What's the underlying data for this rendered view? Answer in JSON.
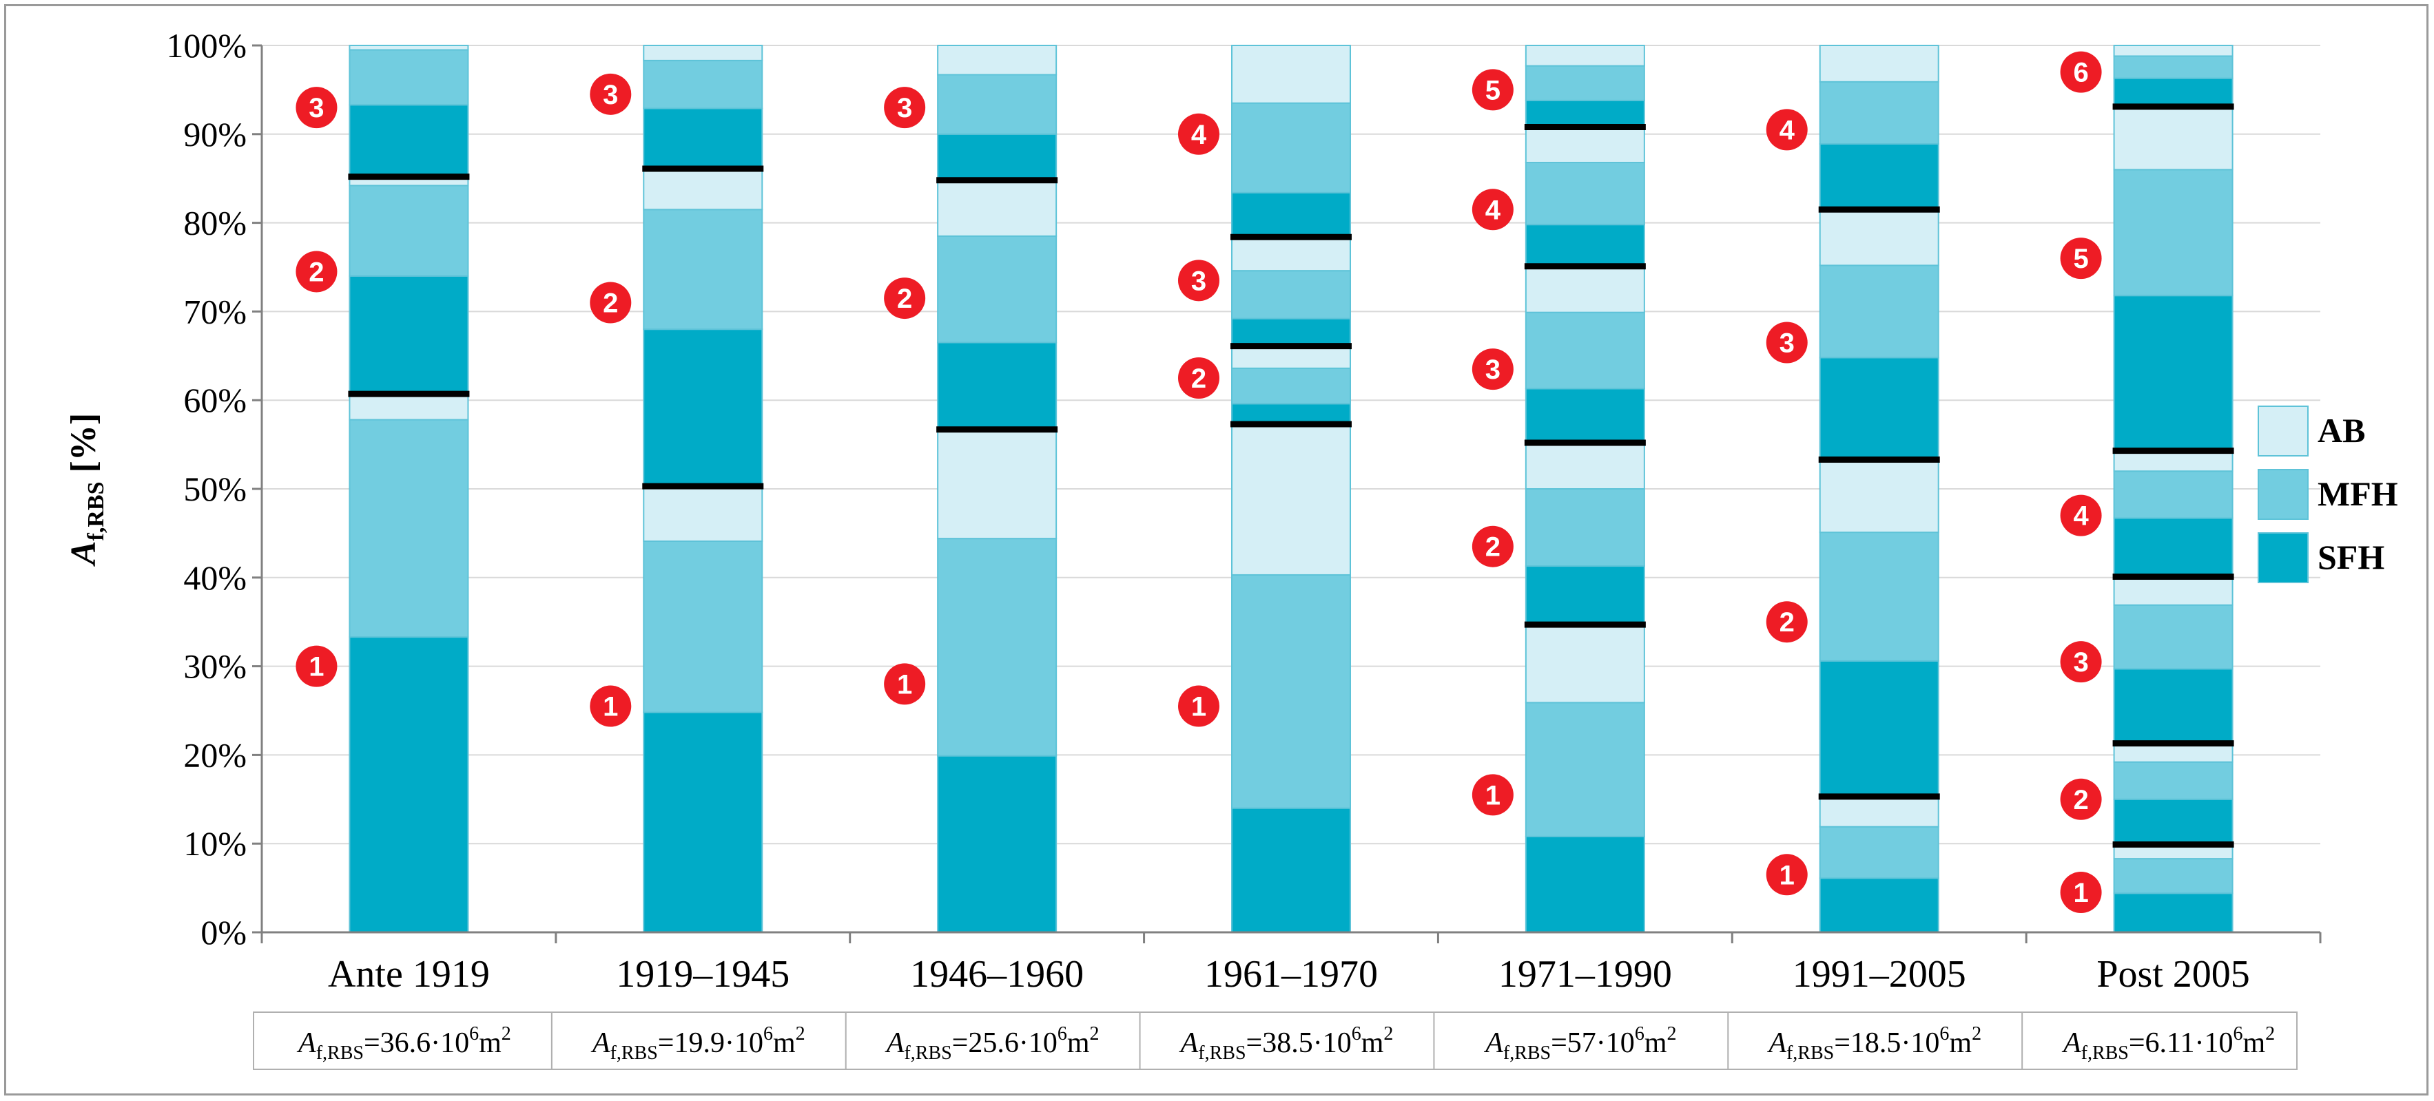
{
  "chart_data": {
    "type": "bar",
    "stacked": true,
    "normalized": true,
    "ylabel_main": "A",
    "ylabel_sub": "f,RBS",
    "ylabel_unit": " [%]",
    "ylim": [
      0,
      100
    ],
    "ytick_labels": [
      "0%",
      "10%",
      "20%",
      "30%",
      "40%",
      "50%",
      "60%",
      "70%",
      "80%",
      "90%",
      "100%"
    ],
    "categories": [
      "Ante 1919",
      "1919–1945",
      "1946–1960",
      "1961–1970",
      "1971–1990",
      "1991–2005",
      "Post 2005"
    ],
    "area_labels": [
      {
        "sym": "A",
        "sub": "f,RBS",
        "value": "=36.6·10",
        "exp": "6",
        "unit": "m",
        "unit_exp": "2"
      },
      {
        "sym": "A",
        "sub": "f,RBS",
        "value": "=19.9·10",
        "exp": "6",
        "unit": "m",
        "unit_exp": "2"
      },
      {
        "sym": "A",
        "sub": "f,RBS",
        "value": "=25.6·10",
        "exp": "6",
        "unit": "m",
        "unit_exp": "2"
      },
      {
        "sym": "A",
        "sub": "f,RBS",
        "value": "=38.5·10",
        "exp": "6",
        "unit": "m",
        "unit_exp": "2"
      },
      {
        "sym": "A",
        "sub": "f,RBS",
        "value": "=57·10",
        "exp": "6",
        "unit": "m",
        "unit_exp": "2"
      },
      {
        "sym": "A",
        "sub": "f,RBS",
        "value": "=18.5·10",
        "exp": "6",
        "unit": "m",
        "unit_exp": "2"
      },
      {
        "sym": "A",
        "sub": "f,RBS",
        "value": "=6.11·10",
        "exp": "6",
        "unit": "m",
        "unit_exp": "2"
      }
    ],
    "legend": {
      "position": "right",
      "items": [
        {
          "name": "AB",
          "color": "#d5eff6"
        },
        {
          "name": "MFH",
          "color": "#72cde0"
        },
        {
          "name": "SFH",
          "color": "#00abc7"
        }
      ]
    },
    "colors": {
      "SFH": "#00abc7",
      "MFH": "#72cde0",
      "AB": "#d5eff6",
      "bar_edge": "#5ec3d8",
      "separator": "#000000",
      "marker": "#ee1c25",
      "grid": "#d9d9d9",
      "axis": "#808080"
    },
    "bars": [
      {
        "category": "Ante 1919",
        "separators": [
          60.7,
          85.2
        ],
        "groups": [
          {
            "label": "1",
            "label_y": 30,
            "segments": [
              {
                "type": "SFH",
                "from": 0,
                "to": 33.3
              },
              {
                "type": "MFH",
                "from": 33.3,
                "to": 57.8
              },
              {
                "type": "AB",
                "from": 57.8,
                "to": 60.7
              }
            ]
          },
          {
            "label": "2",
            "label_y": 74.5,
            "segments": [
              {
                "type": "SFH",
                "from": 60.7,
                "to": 74
              },
              {
                "type": "MFH",
                "from": 74,
                "to": 84.2
              },
              {
                "type": "AB",
                "from": 84.2,
                "to": 85.2
              }
            ]
          },
          {
            "label": "3",
            "label_y": 93,
            "segments": [
              {
                "type": "SFH",
                "from": 85.2,
                "to": 93.3
              },
              {
                "type": "MFH",
                "from": 93.3,
                "to": 99.5
              },
              {
                "type": "AB",
                "from": 99.5,
                "to": 100
              }
            ]
          }
        ]
      },
      {
        "category": "1919–1945",
        "separators": [
          50.3,
          86.1
        ],
        "groups": [
          {
            "label": "1",
            "label_y": 25.5,
            "segments": [
              {
                "type": "SFH",
                "from": 0,
                "to": 24.8
              },
              {
                "type": "MFH",
                "from": 24.8,
                "to": 44.1
              },
              {
                "type": "AB",
                "from": 44.1,
                "to": 50.3
              }
            ]
          },
          {
            "label": "2",
            "label_y": 71,
            "segments": [
              {
                "type": "SFH",
                "from": 50.3,
                "to": 68
              },
              {
                "type": "MFH",
                "from": 68,
                "to": 81.5
              },
              {
                "type": "AB",
                "from": 81.5,
                "to": 86.1
              }
            ]
          },
          {
            "label": "3",
            "label_y": 94.5,
            "segments": [
              {
                "type": "SFH",
                "from": 86.1,
                "to": 92.9
              },
              {
                "type": "MFH",
                "from": 92.9,
                "to": 98.3
              },
              {
                "type": "AB",
                "from": 98.3,
                "to": 100
              }
            ]
          }
        ]
      },
      {
        "category": "1946–1960",
        "separators": [
          56.7,
          84.8
        ],
        "groups": [
          {
            "label": "1",
            "label_y": 28,
            "segments": [
              {
                "type": "SFH",
                "from": 0,
                "to": 19.9
              },
              {
                "type": "MFH",
                "from": 19.9,
                "to": 44.4
              },
              {
                "type": "AB",
                "from": 44.4,
                "to": 56.7
              }
            ]
          },
          {
            "label": "2",
            "label_y": 71.5,
            "segments": [
              {
                "type": "SFH",
                "from": 56.7,
                "to": 66.5
              },
              {
                "type": "MFH",
                "from": 66.5,
                "to": 78.5
              },
              {
                "type": "AB",
                "from": 78.5,
                "to": 84.8
              }
            ]
          },
          {
            "label": "3",
            "label_y": 93,
            "segments": [
              {
                "type": "SFH",
                "from": 84.8,
                "to": 90
              },
              {
                "type": "MFH",
                "from": 90,
                "to": 96.7
              },
              {
                "type": "AB",
                "from": 96.7,
                "to": 100
              }
            ]
          }
        ]
      },
      {
        "category": "1961–1970",
        "separators": [
          57.3,
          66.1,
          78.4
        ],
        "groups": [
          {
            "label": "1",
            "label_y": 25.5,
            "segments": [
              {
                "type": "SFH",
                "from": 0,
                "to": 14
              },
              {
                "type": "MFH",
                "from": 14,
                "to": 40.3
              },
              {
                "type": "AB",
                "from": 40.3,
                "to": 57.3
              }
            ]
          },
          {
            "label": "2",
            "label_y": 62.5,
            "segments": [
              {
                "type": "SFH",
                "from": 57.3,
                "to": 59.6
              },
              {
                "type": "MFH",
                "from": 59.6,
                "to": 63.6
              },
              {
                "type": "AB",
                "from": 63.6,
                "to": 66.1
              }
            ]
          },
          {
            "label": "3",
            "label_y": 73.5,
            "segments": [
              {
                "type": "SFH",
                "from": 66.1,
                "to": 69.2
              },
              {
                "type": "MFH",
                "from": 69.2,
                "to": 74.6
              },
              {
                "type": "AB",
                "from": 74.6,
                "to": 78.4
              }
            ]
          },
          {
            "label": "4",
            "label_y": 90,
            "segments": [
              {
                "type": "SFH",
                "from": 78.4,
                "to": 83.4
              },
              {
                "type": "MFH",
                "from": 83.4,
                "to": 93.5
              },
              {
                "type": "AB",
                "from": 93.5,
                "to": 100
              }
            ]
          }
        ]
      },
      {
        "category": "1971–1990",
        "separators": [
          34.7,
          55.2,
          75.1,
          90.8
        ],
        "groups": [
          {
            "label": "1",
            "label_y": 15.5,
            "segments": [
              {
                "type": "SFH",
                "from": 0,
                "to": 10.8
              },
              {
                "type": "MFH",
                "from": 10.8,
                "to": 25.9
              },
              {
                "type": "AB",
                "from": 25.9,
                "to": 34.7
              }
            ]
          },
          {
            "label": "2",
            "label_y": 43.5,
            "segments": [
              {
                "type": "SFH",
                "from": 34.7,
                "to": 41.3
              },
              {
                "type": "MFH",
                "from": 41.3,
                "to": 50
              },
              {
                "type": "AB",
                "from": 50,
                "to": 55.2
              }
            ]
          },
          {
            "label": "3",
            "label_y": 63.5,
            "segments": [
              {
                "type": "SFH",
                "from": 55.2,
                "to": 61.3
              },
              {
                "type": "MFH",
                "from": 61.3,
                "to": 69.9
              },
              {
                "type": "AB",
                "from": 69.9,
                "to": 75.1
              }
            ]
          },
          {
            "label": "4",
            "label_y": 81.5,
            "segments": [
              {
                "type": "SFH",
                "from": 75.1,
                "to": 79.8
              },
              {
                "type": "MFH",
                "from": 79.8,
                "to": 86.8
              },
              {
                "type": "AB",
                "from": 86.8,
                "to": 90.8
              }
            ]
          },
          {
            "label": "5",
            "label_y": 95,
            "segments": [
              {
                "type": "SFH",
                "from": 90.8,
                "to": 93.8
              },
              {
                "type": "MFH",
                "from": 93.8,
                "to": 97.7
              },
              {
                "type": "AB",
                "from": 97.7,
                "to": 100
              }
            ]
          }
        ]
      },
      {
        "category": "1991–2005",
        "separators": [
          15.3,
          53.3,
          81.5
        ],
        "groups": [
          {
            "label": "1",
            "label_y": 6.5,
            "segments": [
              {
                "type": "SFH",
                "from": 0,
                "to": 6.1
              },
              {
                "type": "MFH",
                "from": 6.1,
                "to": 11.9
              },
              {
                "type": "AB",
                "from": 11.9,
                "to": 15.3
              }
            ]
          },
          {
            "label": "2",
            "label_y": 35,
            "segments": [
              {
                "type": "SFH",
                "from": 15.3,
                "to": 30.6
              },
              {
                "type": "MFH",
                "from": 30.6,
                "to": 45.1
              },
              {
                "type": "AB",
                "from": 45.1,
                "to": 53.3
              }
            ]
          },
          {
            "label": "3",
            "label_y": 66.5,
            "segments": [
              {
                "type": "SFH",
                "from": 53.3,
                "to": 64.8
              },
              {
                "type": "MFH",
                "from": 64.8,
                "to": 75.2
              },
              {
                "type": "AB",
                "from": 75.2,
                "to": 81.5
              }
            ]
          },
          {
            "label": "4",
            "label_y": 90.5,
            "segments": [
              {
                "type": "SFH",
                "from": 81.5,
                "to": 88.9
              },
              {
                "type": "MFH",
                "from": 88.9,
                "to": 95.9
              },
              {
                "type": "AB",
                "from": 95.9,
                "to": 100
              }
            ]
          }
        ]
      },
      {
        "category": "Post 2005",
        "separators": [
          9.9,
          21.3,
          40.1,
          54.3,
          93.1
        ],
        "groups": [
          {
            "label": "1",
            "label_y": 4.5,
            "segments": [
              {
                "type": "SFH",
                "from": 0,
                "to": 4.4
              },
              {
                "type": "MFH",
                "from": 4.4,
                "to": 8.3
              },
              {
                "type": "AB",
                "from": 8.3,
                "to": 9.9
              }
            ]
          },
          {
            "label": "2",
            "label_y": 15,
            "segments": [
              {
                "type": "SFH",
                "from": 9.9,
                "to": 15
              },
              {
                "type": "MFH",
                "from": 15,
                "to": 19.2
              },
              {
                "type": "AB",
                "from": 19.2,
                "to": 21.3
              }
            ]
          },
          {
            "label": "3",
            "label_y": 30.5,
            "segments": [
              {
                "type": "SFH",
                "from": 21.3,
                "to": 29.7
              },
              {
                "type": "MFH",
                "from": 29.7,
                "to": 36.9
              },
              {
                "type": "AB",
                "from": 36.9,
                "to": 40.1
              }
            ]
          },
          {
            "label": "4",
            "label_y": 47,
            "segments": [
              {
                "type": "SFH",
                "from": 40.1,
                "to": 46.7
              },
              {
                "type": "MFH",
                "from": 46.7,
                "to": 52
              },
              {
                "type": "AB",
                "from": 52,
                "to": 54.3
              }
            ]
          },
          {
            "label": "5",
            "label_y": 76,
            "segments": [
              {
                "type": "SFH",
                "from": 54.3,
                "to": 71.8
              },
              {
                "type": "MFH",
                "from": 71.8,
                "to": 86
              },
              {
                "type": "AB",
                "from": 86,
                "to": 93.1
              }
            ]
          },
          {
            "label": "6",
            "label_y": 97,
            "segments": [
              {
                "type": "SFH",
                "from": 93.1,
                "to": 96.3
              },
              {
                "type": "MFH",
                "from": 96.3,
                "to": 98.8
              },
              {
                "type": "AB",
                "from": 98.8,
                "to": 100
              }
            ]
          }
        ]
      }
    ]
  }
}
